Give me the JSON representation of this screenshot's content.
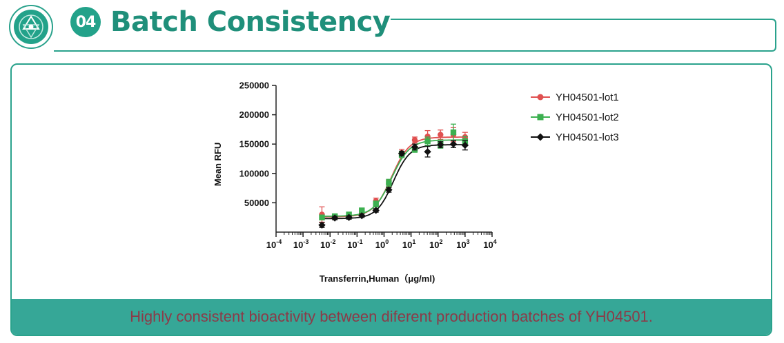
{
  "header": {
    "badge": "04",
    "title": "Batch Consistency"
  },
  "caption": "Highly consistent bioactivity between diferent production batches of YH04501.",
  "colors": {
    "brand": "#23a28a",
    "footer_bg": "#36a797",
    "footer_text": "#8c3a48",
    "lot1": "#e05050",
    "lot2": "#3cb050",
    "lot3": "#111111"
  },
  "chart_data": {
    "type": "scatter",
    "xlabel": "Transferrin,Human（μg/ml)",
    "ylabel": "Mean RFU",
    "x_scale": "log",
    "xlim": [
      0.0001,
      10000
    ],
    "ylim": [
      0,
      250000
    ],
    "x_ticks": [
      {
        "value": 0.0001,
        "base": "10",
        "exp": "-4"
      },
      {
        "value": 0.001,
        "base": "10",
        "exp": "-3"
      },
      {
        "value": 0.01,
        "base": "10",
        "exp": "-2"
      },
      {
        "value": 0.1,
        "base": "10",
        "exp": "-1"
      },
      {
        "value": 1,
        "base": "10",
        "exp": "0"
      },
      {
        "value": 10,
        "base": "10",
        "exp": "1"
      },
      {
        "value": 100,
        "base": "10",
        "exp": "2"
      },
      {
        "value": 1000,
        "base": "10",
        "exp": "3"
      },
      {
        "value": 10000,
        "base": "10",
        "exp": "4"
      }
    ],
    "y_ticks": [
      {
        "value": 50000,
        "label": "50000"
      },
      {
        "value": 100000,
        "label": "100000"
      },
      {
        "value": 150000,
        "label": "150000"
      },
      {
        "value": 200000,
        "label": "200000"
      },
      {
        "value": 250000,
        "label": "250000"
      }
    ],
    "legend_position": "top-right",
    "series": [
      {
        "name": "YH04501-lot1",
        "marker": "circle",
        "color": "#e05050",
        "x": [
          0.005,
          0.015,
          0.05,
          0.15,
          0.5,
          1.5,
          4.5,
          13.7,
          41,
          123,
          370,
          1000
        ],
        "y": [
          30000,
          26000,
          29000,
          33000,
          53000,
          83000,
          135000,
          157000,
          163000,
          166000,
          166000,
          162000
        ],
        "err": [
          13000,
          4000,
          3000,
          4000,
          5000,
          6000,
          6000,
          5000,
          10000,
          8000,
          12000,
          8000
        ],
        "fit": {
          "bottom": 26000,
          "top": 162000,
          "ec50": 1.9,
          "hill": 1.3
        }
      },
      {
        "name": "YH04501-lot2",
        "marker": "square",
        "color": "#3cb050",
        "x": [
          0.005,
          0.015,
          0.05,
          0.15,
          0.5,
          1.5,
          4.5,
          13.7,
          41,
          123,
          370,
          1000
        ],
        "y": [
          25000,
          27000,
          30000,
          37000,
          48000,
          84000,
          132000,
          141000,
          155000,
          150000,
          170000,
          155000
        ],
        "err": [
          4000,
          4000,
          3000,
          3000,
          5000,
          6000,
          5000,
          5000,
          7000,
          7000,
          14000,
          8000
        ],
        "fit": {
          "bottom": 27000,
          "top": 157000,
          "ec50": 1.9,
          "hill": 1.3
        }
      },
      {
        "name": "YH04501-lot3",
        "marker": "diamond",
        "color": "#111111",
        "x": [
          0.005,
          0.015,
          0.05,
          0.15,
          0.5,
          1.5,
          4.5,
          13.7,
          41,
          123,
          370,
          1000
        ],
        "y": [
          12000,
          24000,
          25000,
          28000,
          37000,
          72000,
          134000,
          145000,
          137000,
          149000,
          150000,
          148000
        ],
        "err": [
          4000,
          3000,
          3000,
          3000,
          3000,
          4000,
          4000,
          5000,
          9000,
          5000,
          6000,
          8000
        ],
        "fit": {
          "bottom": 23000,
          "top": 149000,
          "ec50": 2.2,
          "hill": 1.4
        }
      }
    ]
  }
}
